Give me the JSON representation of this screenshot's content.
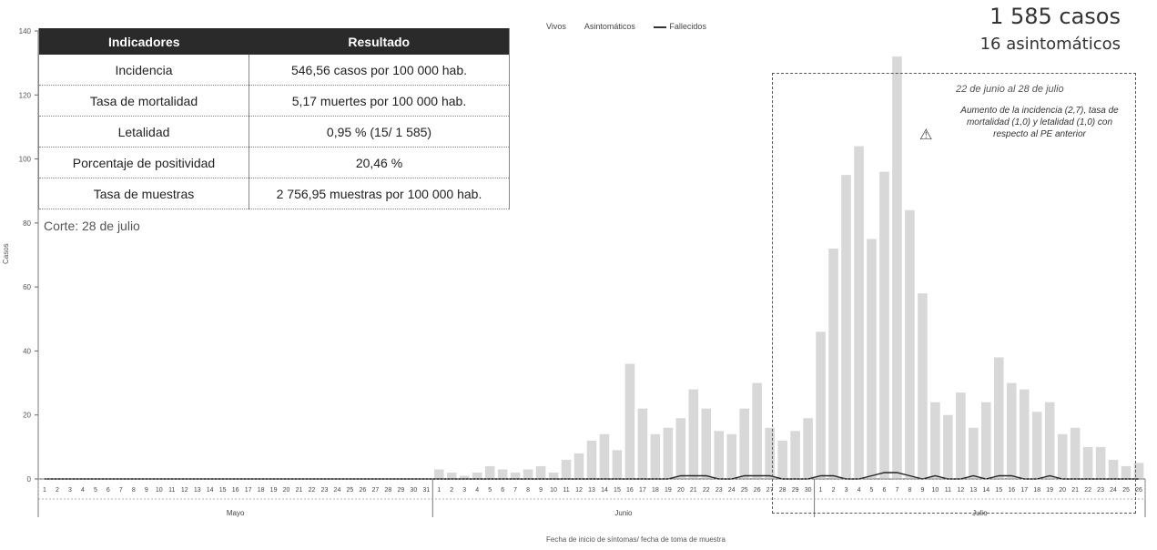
{
  "summary": {
    "cases": "1 585 casos",
    "asymptomatic": "16 asintomáticos"
  },
  "legend": {
    "alive": "Vivos",
    "asymptomatic": "Asintomáticos",
    "deceased": "Fallecidos"
  },
  "table": {
    "headers": [
      "Indicadores",
      "Resultado"
    ],
    "rows": [
      [
        "Incidencia",
        "546,56 casos por 100 000 hab."
      ],
      [
        "Tasa de mortalidad",
        "5,17 muertes por 100 000 hab."
      ],
      [
        "Letalidad",
        "0,95 % (15/ 1 585)"
      ],
      [
        "Porcentaje de positividad",
        "20,46 %"
      ],
      [
        "Tasa de muestras",
        "2 756,95 muestras por 100 000 hab."
      ]
    ]
  },
  "cutoff": "Corte: 28 de julio",
  "annotation": {
    "date": "22 de junio al 28 de julio",
    "text": "Aumento de la incidencia (2,7), tasa de mortalidad (1,0) y letalidad (1,0) con respecto al PE anterior"
  },
  "colors": {
    "bars": "#b8b8b8",
    "deceased": "#222222",
    "table_header": "#2a2a2a"
  },
  "chart_data": {
    "type": "bar",
    "ylabel": "Casos",
    "xlabel": "Fecha de inicio de síntomas/ fecha de toma de muestra",
    "ylim": [
      0,
      140
    ],
    "yticks": [
      0,
      20,
      40,
      60,
      80,
      100,
      120,
      140
    ],
    "months": [
      "Mayo",
      "Junio",
      "Julio"
    ],
    "month_days": [
      31,
      30,
      26
    ],
    "series": [
      {
        "name": "Vivos",
        "values": [
          0,
          0,
          0,
          0,
          0,
          0,
          0,
          0,
          0,
          0,
          0,
          0,
          0,
          0,
          0,
          0,
          0,
          0,
          0,
          0,
          0,
          0,
          0,
          0,
          0,
          0,
          0,
          0,
          0,
          0,
          0,
          3,
          2,
          1,
          2,
          4,
          3,
          2,
          3,
          4,
          2,
          6,
          8,
          12,
          14,
          9,
          36,
          22,
          14,
          16,
          19,
          28,
          22,
          15,
          14,
          22,
          30,
          16,
          12,
          15,
          19,
          46,
          72,
          95,
          104,
          75,
          96,
          132,
          84,
          58,
          24,
          20,
          27,
          16,
          24,
          38,
          30,
          28,
          21,
          24,
          14,
          16,
          10,
          10,
          6,
          4,
          5
        ]
      },
      {
        "name": "Fallecidos",
        "values": [
          0,
          0,
          0,
          0,
          0,
          0,
          0,
          0,
          0,
          0,
          0,
          0,
          0,
          0,
          0,
          0,
          0,
          0,
          0,
          0,
          0,
          0,
          0,
          0,
          0,
          0,
          0,
          0,
          0,
          0,
          0,
          0,
          0,
          0,
          0,
          0,
          0,
          0,
          0,
          0,
          0,
          0,
          0,
          0,
          0,
          0,
          0,
          0,
          0,
          0,
          1,
          1,
          1,
          0,
          0,
          1,
          1,
          1,
          0,
          0,
          0,
          1,
          1,
          0,
          0,
          1,
          2,
          2,
          1,
          0,
          1,
          0,
          0,
          1,
          0,
          1,
          1,
          0,
          0,
          1,
          0,
          0,
          0,
          0,
          0,
          0,
          0
        ]
      }
    ]
  }
}
